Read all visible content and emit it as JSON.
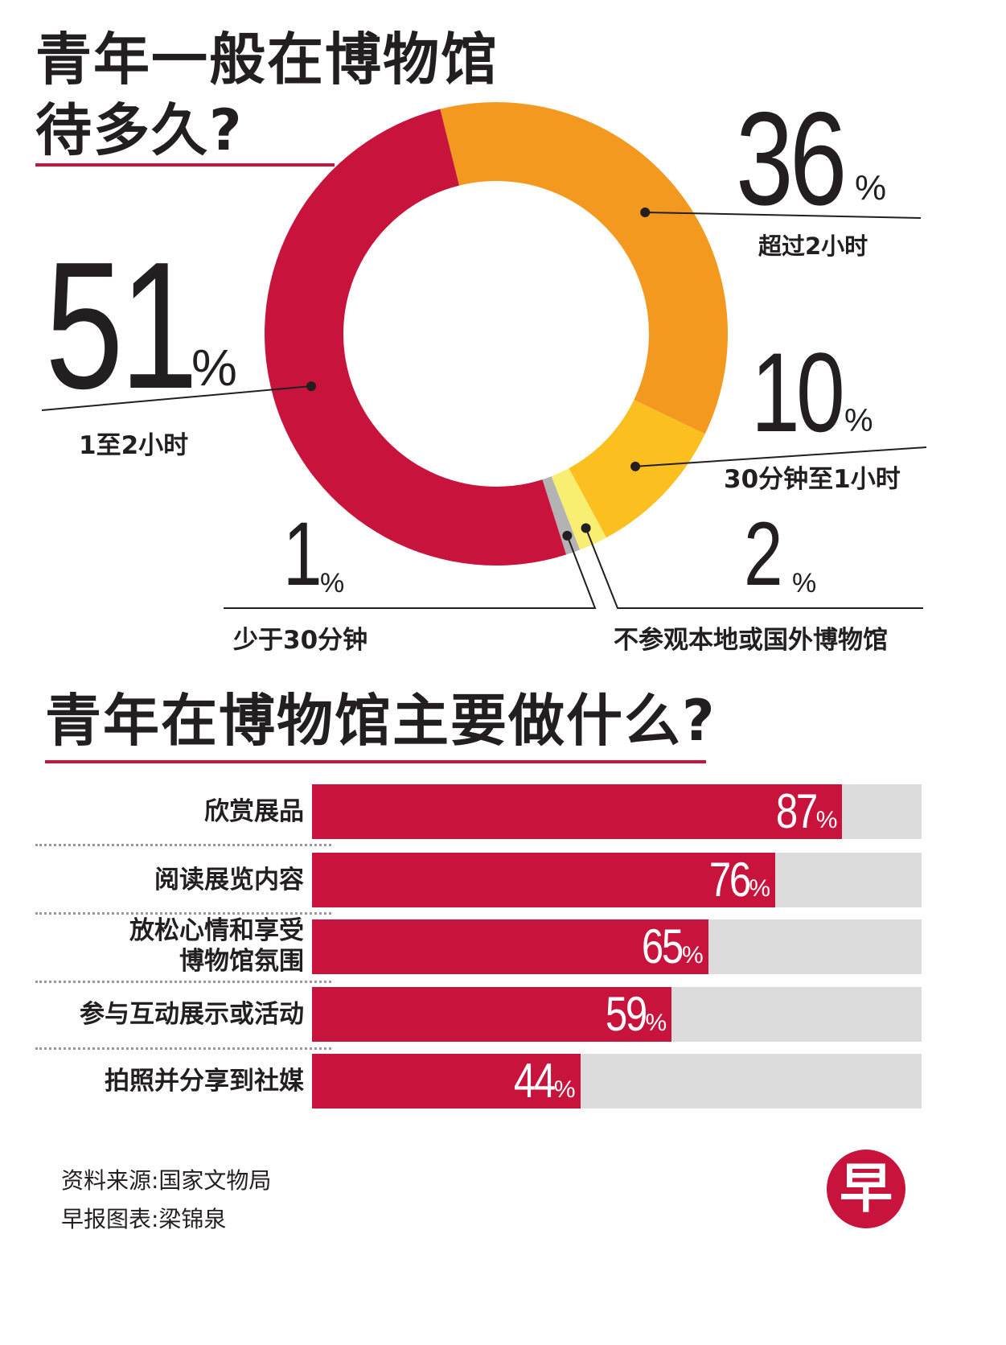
{
  "donut": {
    "title_line1": "青年一般在博物馆",
    "title_line2": "待多久?",
    "items": [
      {
        "value": "36",
        "unit": "%",
        "label": "超过2小时"
      },
      {
        "value": "10",
        "unit": "%",
        "label": "30分钟至1小时"
      },
      {
        "value": "2",
        "unit": "%",
        "label": "不参观本地或国外博物馆"
      },
      {
        "value": "1",
        "unit": "%",
        "label": "少于30分钟"
      },
      {
        "value": "51",
        "unit": "%",
        "label": "1至2小时"
      }
    ]
  },
  "bars": {
    "title": "青年在博物馆主要做什么?",
    "items": [
      {
        "label": "欣赏展品",
        "value": "87",
        "unit": "%"
      },
      {
        "label": "阅读展览内容",
        "value": "76",
        "unit": "%"
      },
      {
        "label": "放松心情和享受",
        "label2": "博物馆氛围",
        "value": "65",
        "unit": "%"
      },
      {
        "label": "参与互动展示或活动",
        "value": "59",
        "unit": "%"
      },
      {
        "label": "拍照并分享到社媒",
        "value": "44",
        "unit": "%"
      }
    ]
  },
  "footer": {
    "source": "资料来源:国家文物局",
    "credit": "早报图表:梁锦泉",
    "logo_char": "早"
  },
  "colors": {
    "red": "#c8143c",
    "orange": "#f4991f",
    "gold": "#fbc020",
    "light_yellow": "#f7ee72",
    "gray": "#b3b3b3",
    "track": "#dcdcdc"
  },
  "chart_data": [
    {
      "type": "pie",
      "title": "青年一般在博物馆待多久?",
      "categories": [
        "超过2小时",
        "30分钟至1小时",
        "不参观本地或国外博物馆",
        "少于30分钟",
        "1至2小时"
      ],
      "values": [
        36,
        10,
        2,
        1,
        51
      ],
      "unit": "%",
      "colors": [
        "#f4991f",
        "#fbc020",
        "#f7ee72",
        "#b3b3b3",
        "#c8143c"
      ]
    },
    {
      "type": "bar",
      "orientation": "horizontal",
      "title": "青年在博物馆主要做什么?",
      "categories": [
        "欣赏展品",
        "阅读展览内容",
        "放松心情和享受博物馆氛围",
        "参与互动展示或活动",
        "拍照并分享到社媒"
      ],
      "values": [
        87,
        76,
        65,
        59,
        44
      ],
      "unit": "%",
      "xlim": [
        0,
        100
      ]
    }
  ]
}
